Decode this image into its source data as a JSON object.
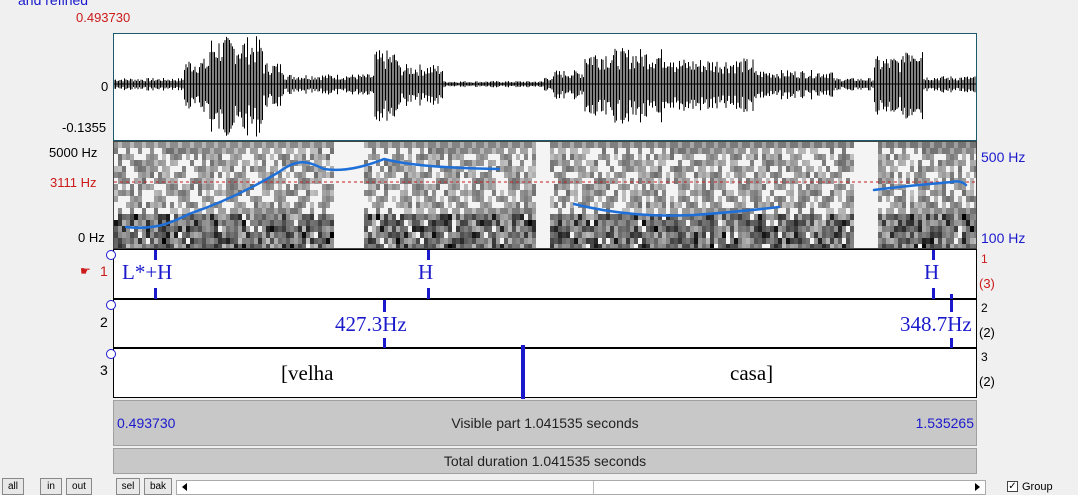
{
  "window": {
    "title_fragment": "and refined"
  },
  "cursor_time": "0.493730",
  "waveform": {
    "max_label": "",
    "zero_label": "0",
    "min_label": "-0.1355"
  },
  "spectrogram": {
    "top_freq": "5000 Hz",
    "cursor_freq": "3111 Hz",
    "bottom_freq": "0 Hz",
    "pitch_top": "500 Hz",
    "pitch_bottom": "100 Hz"
  },
  "tiers": [
    {
      "number": "1",
      "right_num": "1",
      "right_count": "(3)",
      "labels": [
        "L*+H",
        "H",
        "H"
      ]
    },
    {
      "number": "2",
      "right_num": "2",
      "right_count": "(2)",
      "labels": [
        "427.3Hz",
        "348.7Hz"
      ]
    },
    {
      "number": "3",
      "right_num": "3",
      "right_count": "(2)",
      "labels": [
        "[velha",
        "casa]"
      ]
    }
  ],
  "visible_bar": {
    "start": "0.493730",
    "text": "Visible part 1.041535 seconds",
    "end": "1.535265"
  },
  "total_bar": {
    "text": "Total duration 1.041535 seconds"
  },
  "buttons": {
    "all": "all",
    "in": "in",
    "out": "out",
    "sel": "sel",
    "bak": "bak"
  },
  "group": {
    "label": "Group",
    "checked": true
  },
  "colors": {
    "accent_blue": "#1a1acc",
    "cursor_red": "#cc1a1a",
    "pitch_blue": "#1f6fd8"
  }
}
